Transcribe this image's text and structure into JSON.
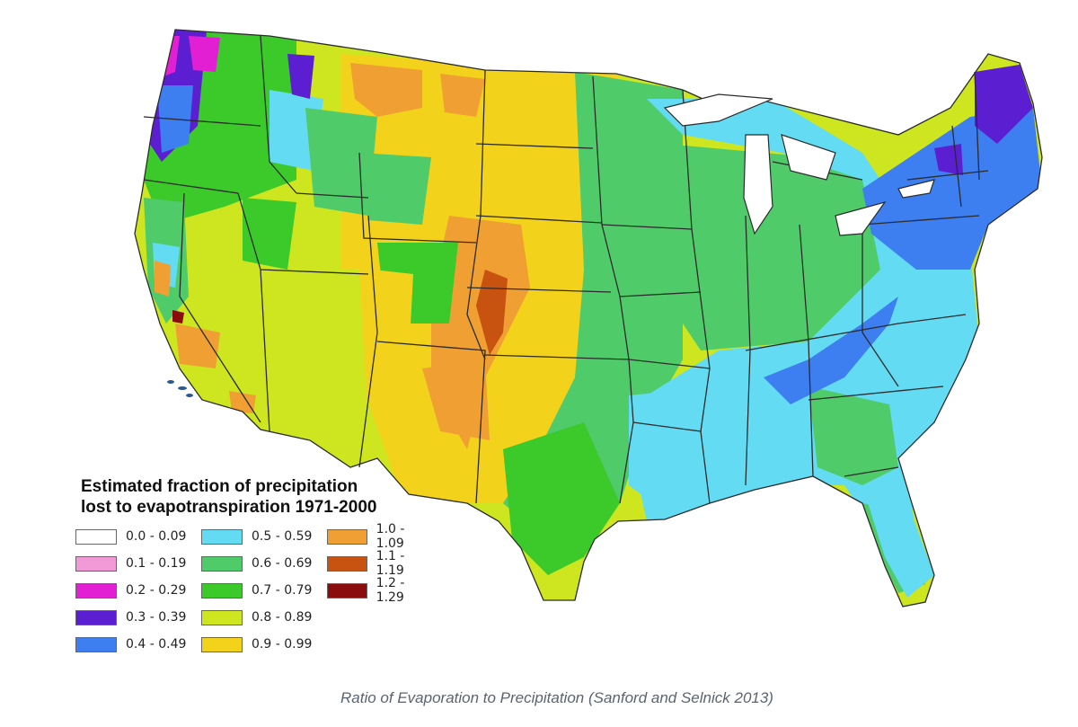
{
  "legend": {
    "title_line1": "Estimated fraction of precipitation",
    "title_line2": "lost to evapotranspiration 1971-2000",
    "items": [
      {
        "label": "0.0 - 0.09",
        "color": "#ffffff"
      },
      {
        "label": "0.1 - 0.19",
        "color": "#f29ad8"
      },
      {
        "label": "0.2 - 0.29",
        "color": "#e21fd2"
      },
      {
        "label": "0.3 - 0.39",
        "color": "#5b1ed0"
      },
      {
        "label": "0.4 - 0.49",
        "color": "#3d7ef0"
      },
      {
        "label": "0.5 - 0.59",
        "color": "#63dbf2"
      },
      {
        "label": "0.6 - 0.69",
        "color": "#4fcb6a"
      },
      {
        "label": "0.7 - 0.79",
        "color": "#3cc92a"
      },
      {
        "label": "0.8 - 0.89",
        "color": "#cde620"
      },
      {
        "label": "0.9 - 0.99",
        "color": "#f3d21c"
      },
      {
        "label": "1.0 - 1.09",
        "color": "#f0a032"
      },
      {
        "label": "1.1 - 1.19",
        "color": "#c8520f"
      },
      {
        "label": "1.2 - 1.29",
        "color": "#8a0c0c"
      }
    ]
  },
  "caption": "Ratio of Evaporation to Precipitation (Sanford and Selnick 2013)"
}
